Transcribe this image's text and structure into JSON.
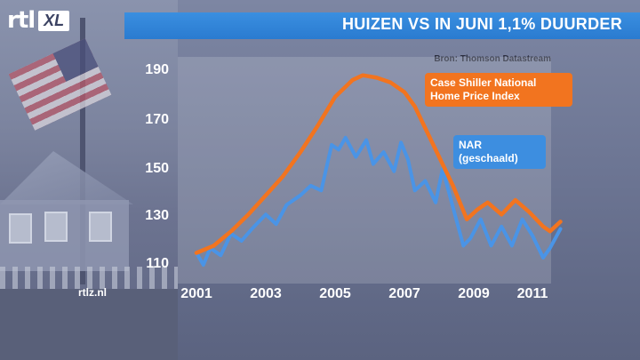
{
  "header": {
    "title": "HUIZEN VS IN JUNI 1,1% DUURDER",
    "source": "Bron: Thomson Datastream",
    "logo_main": "rtl",
    "logo_sub": "XL",
    "footer_site": "rtlz.nl"
  },
  "colors": {
    "banner": "#2a7bd0",
    "case_shiller": "#f2741f",
    "nar": "#4a94e6"
  },
  "chart_data": {
    "type": "line",
    "title": "HUIZEN VS IN JUNI 1,1% DUURDER",
    "xlabel": "",
    "ylabel": "",
    "xlim": [
      2000.8,
      2011.6
    ],
    "ylim": [
      105,
      195
    ],
    "yticks": [
      110,
      130,
      150,
      170,
      190
    ],
    "xticks": [
      2001,
      2003,
      2005,
      2007,
      2009,
      2011
    ],
    "series": [
      {
        "name": "Case Shiller National Home Price Index",
        "label": "Case Shiller National Home Price Index",
        "x": [
          2001.0,
          2001.5,
          2002.0,
          2002.5,
          2003.0,
          2003.5,
          2004.0,
          2004.5,
          2005.0,
          2005.5,
          2005.8,
          2006.2,
          2006.6,
          2007.0,
          2007.3,
          2007.6,
          2008.0,
          2008.4,
          2008.8,
          2009.1,
          2009.4,
          2009.8,
          2010.2,
          2010.6,
          2011.0,
          2011.2,
          2011.5
        ],
        "y": [
          115,
          118,
          124,
          131,
          139,
          147,
          157,
          168,
          180,
          187,
          189,
          188,
          186,
          182,
          176,
          167,
          155,
          143,
          129,
          133,
          136,
          131,
          137,
          132,
          126,
          124,
          128
        ]
      },
      {
        "name": "NAR (geschaald)",
        "label": "NAR\n(geschaald)",
        "x": [
          2001.0,
          2001.2,
          2001.4,
          2001.7,
          2002.0,
          2002.3,
          2002.6,
          2003.0,
          2003.3,
          2003.6,
          2004.0,
          2004.3,
          2004.6,
          2004.9,
          2005.1,
          2005.3,
          2005.6,
          2005.9,
          2006.1,
          2006.4,
          2006.7,
          2006.9,
          2007.1,
          2007.3,
          2007.6,
          2007.9,
          2008.1,
          2008.4,
          2008.7,
          2008.9,
          2009.2,
          2009.5,
          2009.8,
          2010.1,
          2010.4,
          2010.7,
          2011.0,
          2011.2,
          2011.5
        ],
        "y": [
          115,
          110,
          117,
          114,
          123,
          120,
          125,
          131,
          127,
          135,
          139,
          143,
          141,
          160,
          158,
          163,
          155,
          162,
          152,
          157,
          149,
          161,
          154,
          141,
          145,
          136,
          150,
          134,
          118,
          121,
          129,
          118,
          126,
          118,
          129,
          122,
          113,
          117,
          125
        ]
      }
    ]
  }
}
